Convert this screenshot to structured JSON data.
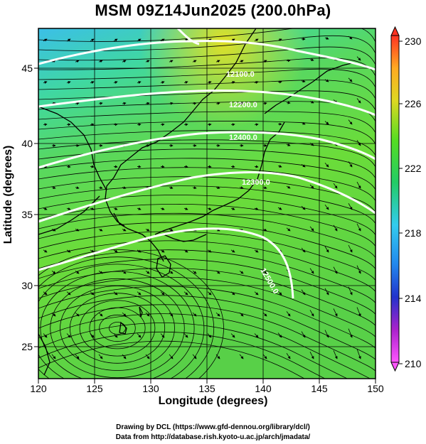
{
  "title": "MSM 09Z14Jun2025 (200.0hPa)",
  "x_axis": {
    "label": "Longitude (degrees)",
    "ticks": [
      "120",
      "125",
      "130",
      "135",
      "140",
      "145",
      "150"
    ]
  },
  "y_axis": {
    "label": "Latitude  (degrees)",
    "ticks": [
      "25",
      "30",
      "35",
      "40",
      "45"
    ]
  },
  "colorbar": {
    "ticks": [
      "210",
      "214",
      "218",
      "222",
      "226",
      "230"
    ],
    "colors": [
      "#ff44ff",
      "#2222dd",
      "#33ccff",
      "#22dd55",
      "#dddd22",
      "#ff3322"
    ]
  },
  "contour_labels": [
    "12100.0",
    "12200.0",
    "12400.0",
    "12300.0",
    "12500.0"
  ],
  "credits": {
    "line1": "Drawing by DCL (https://www.gfd-dennou.org/library/dcl/)",
    "line2": "Data from http://database.rish.kyoto-u.ac.jp/arch/jmadata/"
  }
}
